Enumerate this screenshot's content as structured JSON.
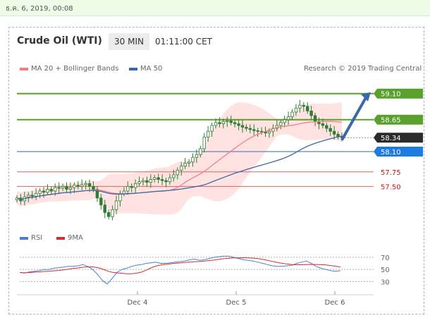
{
  "timestamp": "ธ.ค. 6, 2019, 00:08",
  "header": {
    "title": "Crude Oil (WTI)",
    "timeframe": "30 MIN",
    "time": "01:11:00 CET"
  },
  "legend": {
    "ma20": "MA 20 + Bollinger Bands",
    "ma50": "MA 50",
    "credit": "Research © 2019 Trading Central"
  },
  "colors": {
    "candle": "#2e7d32",
    "ma20": "#f08080",
    "ma50": "#3a68a8",
    "band": "#ffd9d9",
    "resistance": "#5aa02c",
    "support": "#e06060",
    "rsi": "#4a7fd6",
    "rsi_ma": "#d23030"
  },
  "chart_data": {
    "type": "candlestick",
    "x_labels": [
      "Dec 4",
      "Dec 5",
      "Dec 6"
    ],
    "ylim": [
      56.8,
      59.4
    ],
    "last_price": 58.34,
    "close_series": [
      57.3,
      57.25,
      57.32,
      57.35,
      57.33,
      57.38,
      57.42,
      57.4,
      57.45,
      57.42,
      57.48,
      57.47,
      57.5,
      57.45,
      57.48,
      57.52,
      57.5,
      57.53,
      57.55,
      57.5,
      57.45,
      57.3,
      57.18,
      57.05,
      56.98,
      57.1,
      57.25,
      57.38,
      57.42,
      57.5,
      57.48,
      57.55,
      57.58,
      57.6,
      57.57,
      57.62,
      57.65,
      57.62,
      57.6,
      57.58,
      57.65,
      57.7,
      57.78,
      57.85,
      57.9,
      57.92,
      58.0,
      58.05,
      58.15,
      58.35,
      58.45,
      58.55,
      58.6,
      58.58,
      58.62,
      58.63,
      58.6,
      58.58,
      58.55,
      58.52,
      58.5,
      58.48,
      58.46,
      58.45,
      58.44,
      58.42,
      58.45,
      58.5,
      58.55,
      58.6,
      58.65,
      58.7,
      58.78,
      58.85,
      58.9,
      58.88,
      58.8,
      58.72,
      58.62,
      58.58,
      58.55,
      58.5,
      58.45,
      58.4,
      58.36,
      58.34
    ],
    "levels": [
      {
        "label": "59.10",
        "value": 59.1,
        "kind": "resistance"
      },
      {
        "label": "58.65",
        "value": 58.65,
        "kind": "resistance"
      },
      {
        "label": "58.34",
        "value": 58.34,
        "kind": "last"
      },
      {
        "label": "58.10",
        "value": 58.1,
        "kind": "pivot"
      },
      {
        "label": "57.75",
        "value": 57.75,
        "kind": "support"
      },
      {
        "label": "57.50",
        "value": 57.5,
        "kind": "support"
      }
    ],
    "rsi": {
      "ylim": [
        20,
        85
      ],
      "ticks": [
        "70",
        "50",
        "30"
      ],
      "values": [
        45,
        44,
        46,
        47,
        48,
        50,
        50,
        52,
        53,
        54,
        55,
        55,
        56,
        58,
        55,
        50,
        42,
        32,
        26,
        35,
        45,
        50,
        52,
        55,
        57,
        58,
        60,
        61,
        62,
        60,
        60,
        61,
        62,
        63,
        64,
        66,
        67,
        65,
        66,
        68,
        70,
        71,
        72,
        72,
        70,
        68,
        66,
        65,
        64,
        62,
        60,
        58,
        56,
        55,
        55,
        56,
        57,
        60,
        62,
        64,
        60,
        55,
        52,
        50,
        48,
        47,
        48
      ]
    },
    "rsi_legend": [
      "RSI",
      "9MA"
    ]
  }
}
